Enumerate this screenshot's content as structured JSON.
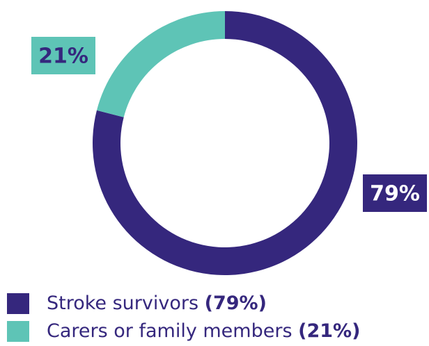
{
  "chart_data": {
    "type": "pie",
    "donut": true,
    "categories": [
      "Stroke survivors",
      "Carers or family members"
    ],
    "values": [
      79,
      21
    ],
    "value_labels": [
      "79%",
      "21%"
    ],
    "legend_value_labels": [
      "(79%)",
      "(21%)"
    ],
    "colors": [
      "#35277d",
      "#5ec4b6"
    ]
  }
}
